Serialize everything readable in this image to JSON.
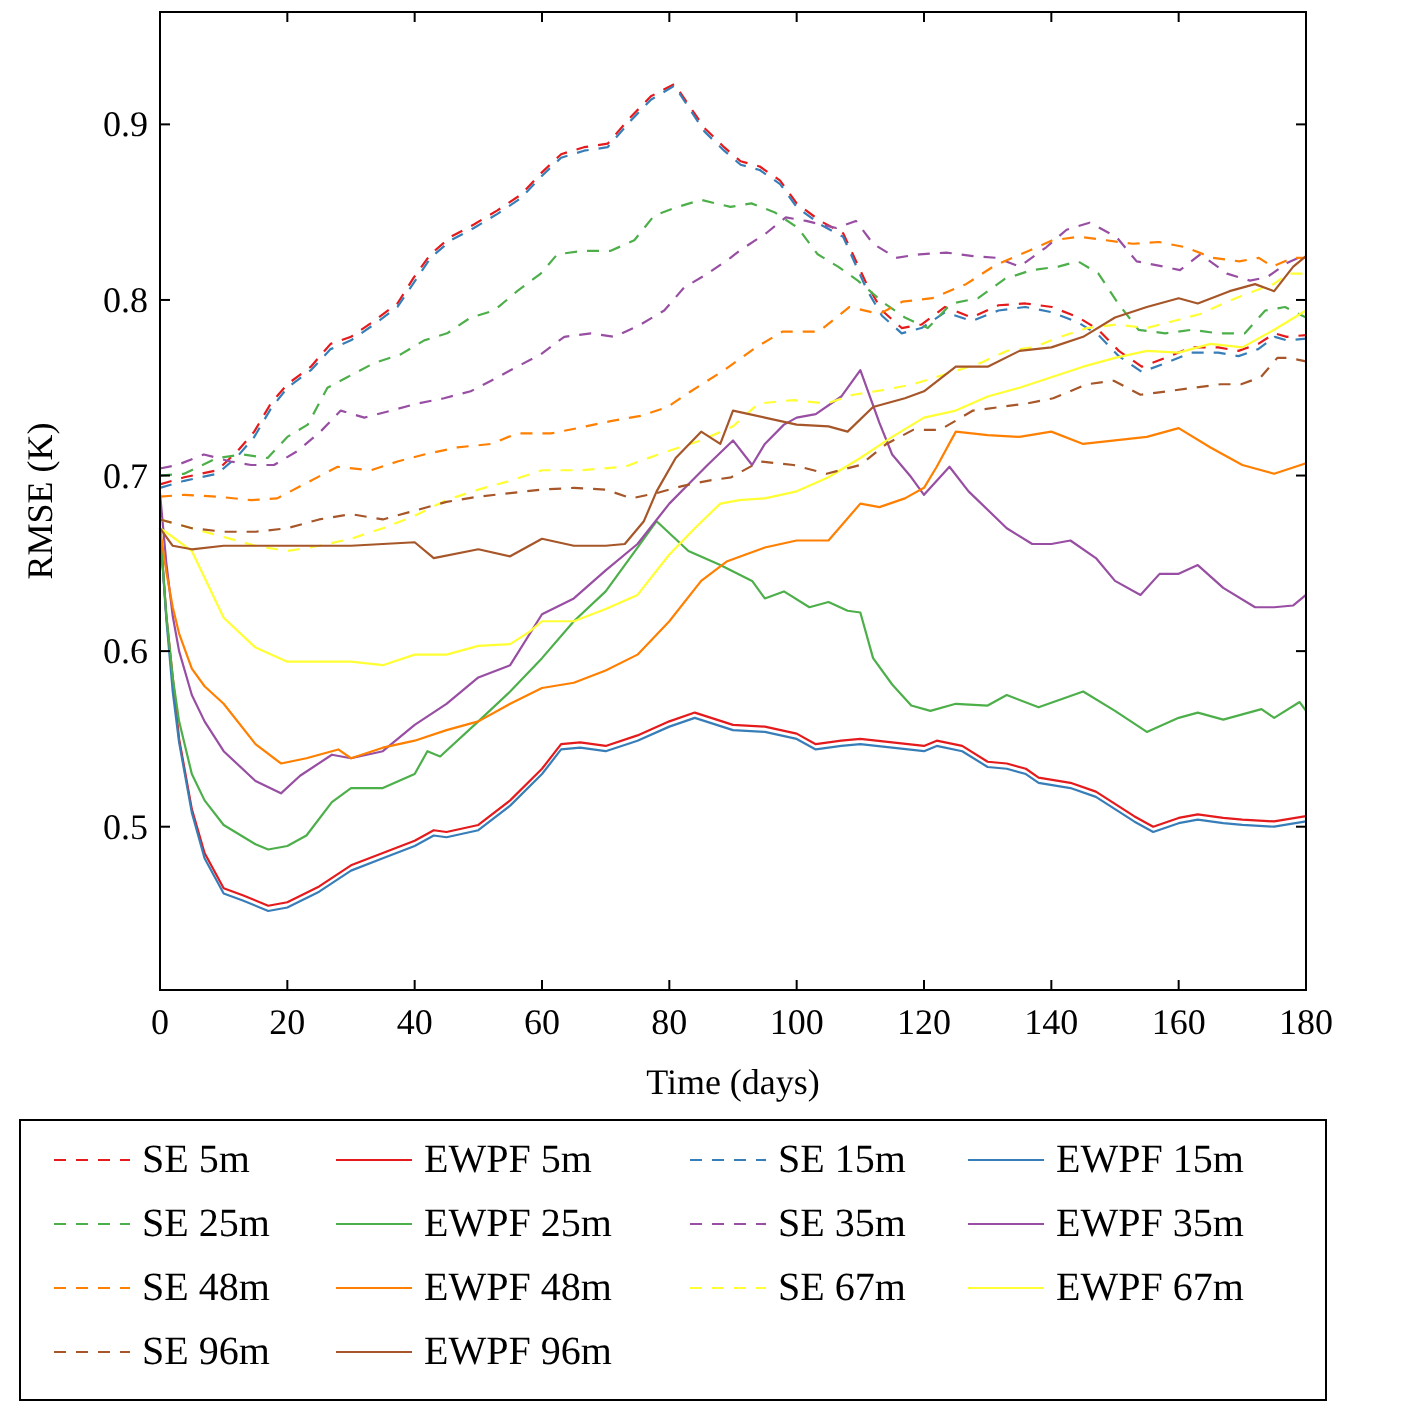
{
  "chart_data": {
    "type": "line",
    "xlabel": "Time (days)",
    "ylabel": "RMSE (K)",
    "xlim": [
      0,
      180
    ],
    "ylim": [
      0.407,
      0.964
    ],
    "xticks": [
      0,
      20,
      40,
      60,
      80,
      100,
      120,
      140,
      160,
      180
    ],
    "yticks": [
      0.5,
      0.6,
      0.7,
      0.8,
      0.9
    ],
    "legend": "bottom",
    "series": [
      {
        "name": "SE 5m",
        "color": "#e41a1c",
        "line_style": "dashed",
        "x": [
          0,
          3.8,
          9,
          12.2,
          14.8,
          17.4,
          20,
          23.7,
          26.8,
          30,
          33.6,
          37.3,
          39.9,
          42.5,
          45.7,
          49.3,
          53,
          56.7,
          59.8,
          63,
          66.6,
          70.3,
          73.9,
          77.1,
          80.8,
          85.5,
          88.6,
          91.2,
          94.2,
          97.4,
          100,
          103.7,
          107.3,
          111,
          113.4,
          116.5,
          119.6,
          123.3,
          127.5,
          131.7,
          135.9,
          140.1,
          144.3,
          147.4,
          150.6,
          154.2,
          157.9,
          162,
          166.2,
          169.4,
          172.5,
          175.1,
          177,
          180
        ],
        "values": [
          0.695,
          0.699,
          0.703,
          0.714,
          0.725,
          0.741,
          0.752,
          0.762,
          0.775,
          0.779,
          0.788,
          0.798,
          0.813,
          0.826,
          0.836,
          0.843,
          0.851,
          0.86,
          0.872,
          0.883,
          0.887,
          0.889,
          0.904,
          0.916,
          0.923,
          0.898,
          0.887,
          0.879,
          0.876,
          0.868,
          0.855,
          0.845,
          0.838,
          0.809,
          0.794,
          0.784,
          0.786,
          0.796,
          0.79,
          0.797,
          0.798,
          0.796,
          0.79,
          0.783,
          0.771,
          0.762,
          0.767,
          0.773,
          0.773,
          0.771,
          0.775,
          0.781,
          0.779,
          0.78
        ]
      },
      {
        "name": "EWPF 5m",
        "color": "#e41a1c",
        "line_style": "solid",
        "x": [
          0,
          1,
          3,
          5,
          7,
          10,
          13,
          17,
          20,
          25,
          30,
          35,
          40,
          43,
          45,
          50,
          55,
          60,
          63,
          66,
          70,
          75,
          80,
          84,
          90,
          95,
          100,
          103,
          107,
          110,
          115,
          120,
          122,
          126,
          130,
          133,
          136,
          138,
          143,
          147,
          150,
          153,
          156,
          160,
          163,
          167,
          170,
          175,
          180
        ],
        "values": [
          0.67,
          0.62,
          0.55,
          0.51,
          0.485,
          0.465,
          0.461,
          0.455,
          0.457,
          0.466,
          0.478,
          0.485,
          0.492,
          0.498,
          0.497,
          0.501,
          0.515,
          0.533,
          0.547,
          0.548,
          0.546,
          0.552,
          0.56,
          0.565,
          0.558,
          0.557,
          0.553,
          0.547,
          0.549,
          0.55,
          0.548,
          0.546,
          0.549,
          0.546,
          0.537,
          0.536,
          0.533,
          0.528,
          0.525,
          0.52,
          0.513,
          0.506,
          0.5,
          0.505,
          0.507,
          0.505,
          0.504,
          0.503,
          0.506
        ]
      },
      {
        "name": "SE 15m",
        "color": "#377eb8",
        "line_style": "dashed",
        "x": [
          0,
          3.8,
          9,
          12.2,
          14.8,
          17.4,
          20,
          23.7,
          26.8,
          30,
          33.6,
          37.3,
          39.9,
          42.5,
          45.7,
          49.3,
          53,
          56.7,
          59.8,
          63,
          66.6,
          70.3,
          73.9,
          77.1,
          80.8,
          85.5,
          88.6,
          91.2,
          94.2,
          97.4,
          100,
          103.7,
          107.3,
          111,
          113.4,
          116.5,
          119.6,
          123.3,
          127.5,
          131.7,
          135.9,
          140.1,
          144.3,
          147.4,
          150.6,
          154.2,
          157.9,
          162,
          166.2,
          169.4,
          172.5,
          175.1,
          177,
          180
        ],
        "values": [
          0.693,
          0.697,
          0.701,
          0.711,
          0.722,
          0.738,
          0.75,
          0.76,
          0.772,
          0.777,
          0.786,
          0.796,
          0.81,
          0.824,
          0.834,
          0.841,
          0.849,
          0.858,
          0.87,
          0.881,
          0.885,
          0.887,
          0.902,
          0.914,
          0.922,
          0.896,
          0.885,
          0.877,
          0.874,
          0.866,
          0.853,
          0.843,
          0.836,
          0.806,
          0.791,
          0.781,
          0.784,
          0.793,
          0.788,
          0.794,
          0.796,
          0.793,
          0.787,
          0.78,
          0.768,
          0.759,
          0.764,
          0.77,
          0.77,
          0.768,
          0.772,
          0.779,
          0.777,
          0.778
        ]
      },
      {
        "name": "EWPF 15m",
        "color": "#377eb8",
        "line_style": "solid",
        "x": [
          0,
          1,
          2,
          3,
          5,
          7,
          10,
          13,
          17,
          20,
          25,
          30,
          35,
          40,
          43,
          45,
          50,
          55,
          60,
          63,
          66,
          70,
          75,
          80,
          84,
          90,
          95,
          100,
          103,
          107,
          110,
          115,
          120,
          122,
          126,
          130,
          133,
          136,
          138,
          143,
          147,
          150,
          153,
          156,
          160,
          163,
          167,
          170,
          175,
          180
        ],
        "values": [
          0.67,
          0.618,
          0.577,
          0.548,
          0.508,
          0.482,
          0.462,
          0.458,
          0.452,
          0.454,
          0.463,
          0.475,
          0.482,
          0.489,
          0.495,
          0.494,
          0.498,
          0.512,
          0.53,
          0.544,
          0.545,
          0.543,
          0.549,
          0.557,
          0.562,
          0.555,
          0.554,
          0.55,
          0.544,
          0.546,
          0.547,
          0.545,
          0.543,
          0.546,
          0.543,
          0.534,
          0.533,
          0.53,
          0.525,
          0.522,
          0.517,
          0.51,
          0.503,
          0.497,
          0.502,
          0.504,
          0.502,
          0.501,
          0.5,
          0.503
        ]
      },
      {
        "name": "SE 25m",
        "color": "#4daf4a",
        "line_style": "dashed",
        "x": [
          0,
          3.8,
          9,
          13,
          16.9,
          20,
          23.2,
          26.3,
          29.4,
          33.6,
          37.8,
          41.5,
          45.1,
          48.8,
          52.5,
          56.1,
          59.8,
          62.4,
          66.6,
          70.8,
          74.5,
          77.6,
          81.3,
          85,
          89.6,
          92.9,
          96.5,
          100.2,
          103.3,
          106.5,
          109.6,
          113.8,
          117,
          120.6,
          124.3,
          128.5,
          132.7,
          136.9,
          141.1,
          144.2,
          147.4,
          150.5,
          153.7,
          157.9,
          162,
          166.2,
          170.4,
          173.6,
          176.7,
          180
        ],
        "values": [
          0.7,
          0.701,
          0.71,
          0.712,
          0.71,
          0.722,
          0.729,
          0.75,
          0.756,
          0.764,
          0.769,
          0.777,
          0.781,
          0.79,
          0.794,
          0.805,
          0.815,
          0.826,
          0.828,
          0.828,
          0.834,
          0.848,
          0.853,
          0.857,
          0.853,
          0.855,
          0.85,
          0.841,
          0.826,
          0.819,
          0.811,
          0.798,
          0.79,
          0.784,
          0.798,
          0.801,
          0.812,
          0.817,
          0.819,
          0.822,
          0.815,
          0.798,
          0.783,
          0.781,
          0.783,
          0.781,
          0.781,
          0.794,
          0.796,
          0.79
        ]
      },
      {
        "name": "EWPF 25m",
        "color": "#4daf4a",
        "line_style": "solid",
        "x": [
          0,
          1,
          2,
          3,
          5,
          7,
          10,
          15,
          17,
          20,
          23,
          27,
          30,
          35,
          40,
          42,
          44,
          50,
          55,
          60,
          65,
          70,
          75,
          78,
          83,
          88,
          93,
          95,
          98,
          102,
          105,
          108,
          110,
          112,
          115,
          118,
          121,
          125,
          130,
          133,
          138,
          145,
          150,
          155,
          160,
          163,
          167,
          173,
          175,
          179,
          180
        ],
        "values": [
          0.67,
          0.62,
          0.585,
          0.56,
          0.53,
          0.515,
          0.501,
          0.49,
          0.487,
          0.489,
          0.495,
          0.514,
          0.522,
          0.522,
          0.53,
          0.543,
          0.54,
          0.56,
          0.577,
          0.596,
          0.617,
          0.634,
          0.659,
          0.674,
          0.657,
          0.649,
          0.64,
          0.63,
          0.634,
          0.625,
          0.628,
          0.623,
          0.622,
          0.596,
          0.581,
          0.569,
          0.566,
          0.57,
          0.569,
          0.575,
          0.568,
          0.577,
          0.566,
          0.554,
          0.562,
          0.565,
          0.561,
          0.567,
          0.562,
          0.571,
          0.566
        ]
      },
      {
        "name": "SE 35m",
        "color": "#984ea3",
        "line_style": "dashed",
        "x": [
          0,
          2.7,
          6.9,
          11.1,
          14.3,
          17.9,
          21.6,
          25.2,
          28.4,
          32.1,
          36.3,
          40.4,
          44.6,
          48.8,
          52,
          56.1,
          59.8,
          63.5,
          67.7,
          71.4,
          75.5,
          79.2,
          82.3,
          86,
          89.6,
          91,
          95.2,
          98.3,
          101.5,
          106.2,
          109.3,
          112,
          115.6,
          119.3,
          123.5,
          127.7,
          131.4,
          135,
          139.2,
          142.4,
          146,
          150.2,
          153.4,
          157.6,
          160.2,
          163.4,
          167.6,
          171.2,
          173.9,
          177,
          180
        ],
        "values": [
          0.704,
          0.706,
          0.712,
          0.708,
          0.706,
          0.706,
          0.714,
          0.725,
          0.737,
          0.733,
          0.737,
          0.741,
          0.744,
          0.748,
          0.754,
          0.762,
          0.769,
          0.779,
          0.781,
          0.779,
          0.786,
          0.794,
          0.807,
          0.815,
          0.824,
          0.828,
          0.838,
          0.847,
          0.845,
          0.841,
          0.845,
          0.832,
          0.824,
          0.826,
          0.827,
          0.825,
          0.824,
          0.819,
          0.83,
          0.84,
          0.844,
          0.836,
          0.822,
          0.819,
          0.817,
          0.826,
          0.815,
          0.811,
          0.813,
          0.821,
          0.826
        ]
      },
      {
        "name": "EWPF 35m",
        "color": "#984ea3",
        "line_style": "solid",
        "x": [
          0,
          1,
          2,
          3,
          5,
          7,
          10,
          15,
          19,
          22,
          27,
          30,
          35,
          40,
          45,
          50,
          55,
          60,
          65,
          70,
          75,
          80,
          83,
          86,
          90,
          93,
          95,
          98,
          100,
          103,
          107,
          110,
          113,
          115,
          118,
          120,
          124,
          127,
          133,
          137,
          140,
          143,
          147,
          150,
          154,
          157,
          160,
          163,
          167,
          172,
          175,
          178,
          180
        ],
        "values": [
          0.69,
          0.65,
          0.62,
          0.6,
          0.575,
          0.56,
          0.543,
          0.526,
          0.519,
          0.529,
          0.541,
          0.539,
          0.543,
          0.558,
          0.57,
          0.585,
          0.592,
          0.621,
          0.63,
          0.646,
          0.661,
          0.684,
          0.695,
          0.706,
          0.72,
          0.706,
          0.718,
          0.729,
          0.733,
          0.735,
          0.745,
          0.76,
          0.73,
          0.712,
          0.699,
          0.689,
          0.705,
          0.691,
          0.67,
          0.661,
          0.661,
          0.663,
          0.653,
          0.64,
          0.632,
          0.644,
          0.644,
          0.649,
          0.636,
          0.625,
          0.625,
          0.626,
          0.632
        ]
      },
      {
        "name": "SE 48m",
        "color": "#ff7f00",
        "line_style": "dashed",
        "x": [
          0,
          3.8,
          9,
          14.3,
          18.4,
          22.6,
          27.9,
          33.1,
          37.3,
          41.5,
          46.7,
          52,
          56.1,
          61.4,
          65.6,
          70.8,
          75.5,
          79.7,
          83.4,
          88.6,
          93.6,
          97.8,
          103.5,
          108.3,
          113,
          116.6,
          121.3,
          126.6,
          131.3,
          136.5,
          140.2,
          144.4,
          148.6,
          152.8,
          156.9,
          161.1,
          165.3,
          169.5,
          172.6,
          174.7,
          177.9,
          180
        ],
        "values": [
          0.688,
          0.689,
          0.688,
          0.686,
          0.687,
          0.695,
          0.705,
          0.703,
          0.708,
          0.712,
          0.716,
          0.718,
          0.724,
          0.724,
          0.727,
          0.731,
          0.734,
          0.739,
          0.748,
          0.76,
          0.773,
          0.782,
          0.782,
          0.796,
          0.792,
          0.799,
          0.801,
          0.809,
          0.82,
          0.828,
          0.834,
          0.836,
          0.834,
          0.832,
          0.833,
          0.83,
          0.824,
          0.822,
          0.824,
          0.819,
          0.824,
          0.824
        ]
      },
      {
        "name": "EWPF 48m",
        "color": "#ff7f00",
        "line_style": "solid",
        "x": [
          0,
          1,
          2,
          3,
          5,
          7,
          10,
          15,
          19,
          23,
          28,
          30,
          35,
          40,
          45,
          50,
          55,
          60,
          65,
          70,
          75,
          80,
          85,
          89,
          92,
          95,
          100,
          105,
          110,
          113,
          117,
          120,
          122,
          125,
          130,
          135,
          140,
          145,
          150,
          155,
          160,
          165,
          170,
          175,
          180
        ],
        "values": [
          0.67,
          0.645,
          0.625,
          0.61,
          0.59,
          0.58,
          0.57,
          0.547,
          0.536,
          0.539,
          0.544,
          0.539,
          0.545,
          0.549,
          0.555,
          0.56,
          0.57,
          0.579,
          0.582,
          0.589,
          0.598,
          0.617,
          0.64,
          0.651,
          0.655,
          0.659,
          0.663,
          0.663,
          0.684,
          0.682,
          0.687,
          0.693,
          0.705,
          0.725,
          0.723,
          0.722,
          0.725,
          0.718,
          0.72,
          0.722,
          0.727,
          0.716,
          0.706,
          0.701,
          0.707
        ]
      },
      {
        "name": "SE 67m",
        "color": "#ffff33",
        "line_style": "dashed",
        "x": [
          0,
          5,
          10,
          15,
          20,
          25,
          30,
          35,
          40,
          45,
          50,
          55,
          60,
          66,
          73,
          79,
          85,
          90,
          94,
          99.5,
          104.7,
          108.9,
          114.1,
          118.3,
          123.6,
          128.8,
          133,
          137.2,
          141.4,
          145.6,
          150.3,
          155,
          159.2,
          163.4,
          167.6,
          171.8,
          174.9,
          177.2,
          180
        ],
        "values": [
          0.675,
          0.67,
          0.665,
          0.66,
          0.657,
          0.66,
          0.664,
          0.67,
          0.677,
          0.686,
          0.692,
          0.697,
          0.703,
          0.703,
          0.705,
          0.713,
          0.72,
          0.728,
          0.741,
          0.743,
          0.741,
          0.746,
          0.749,
          0.752,
          0.758,
          0.764,
          0.771,
          0.773,
          0.779,
          0.784,
          0.786,
          0.784,
          0.788,
          0.792,
          0.799,
          0.805,
          0.809,
          0.815,
          0.815
        ]
      },
      {
        "name": "EWPF 67m",
        "color": "#ffff33",
        "line_style": "solid",
        "x": [
          0,
          2,
          5,
          10,
          15,
          20,
          30,
          35,
          40,
          45,
          50,
          55,
          58,
          60,
          65,
          70,
          75,
          80,
          84,
          88,
          91,
          95,
          100,
          105,
          110,
          115,
          120,
          125,
          130,
          135,
          140,
          145,
          150,
          155,
          160,
          165,
          170,
          175,
          180
        ],
        "values": [
          0.67,
          0.665,
          0.657,
          0.619,
          0.602,
          0.594,
          0.594,
          0.592,
          0.598,
          0.598,
          0.603,
          0.604,
          0.611,
          0.617,
          0.617,
          0.624,
          0.632,
          0.655,
          0.67,
          0.684,
          0.686,
          0.687,
          0.691,
          0.699,
          0.71,
          0.722,
          0.733,
          0.737,
          0.745,
          0.75,
          0.756,
          0.762,
          0.767,
          0.771,
          0.77,
          0.775,
          0.773,
          0.783,
          0.794
        ]
      },
      {
        "name": "SE 96m",
        "color": "#a65628",
        "line_style": "dashed",
        "x": [
          0,
          5,
          10,
          15,
          20,
          25,
          30,
          35,
          40,
          45,
          50,
          55,
          60,
          65,
          70,
          74,
          78,
          82,
          86,
          89.7,
          94.2,
          99.5,
          104.7,
          110,
          114.1,
          118.3,
          122.5,
          127.7,
          131.9,
          136.1,
          140.3,
          145.6,
          149.8,
          154,
          158.2,
          162.4,
          166.6,
          169.8,
          172.9,
          175.5,
          177.3,
          180
        ],
        "values": [
          0.675,
          0.67,
          0.668,
          0.668,
          0.67,
          0.675,
          0.678,
          0.675,
          0.68,
          0.685,
          0.688,
          0.69,
          0.692,
          0.693,
          0.692,
          0.687,
          0.69,
          0.694,
          0.697,
          0.699,
          0.708,
          0.706,
          0.701,
          0.706,
          0.718,
          0.726,
          0.726,
          0.737,
          0.739,
          0.741,
          0.744,
          0.752,
          0.754,
          0.746,
          0.748,
          0.75,
          0.752,
          0.752,
          0.756,
          0.767,
          0.767,
          0.765
        ]
      },
      {
        "name": "EWPF 96m",
        "color": "#a65628",
        "line_style": "solid",
        "x": [
          0,
          2,
          5,
          10,
          20,
          30,
          40,
          43,
          50,
          55,
          60,
          65,
          70,
          73,
          76,
          78,
          81,
          85,
          88,
          90,
          95,
          100,
          105,
          108,
          112,
          117,
          120,
          125,
          130,
          135,
          140,
          145,
          150,
          155,
          160,
          163,
          168,
          172,
          175,
          178,
          180
        ],
        "values": [
          0.67,
          0.66,
          0.658,
          0.66,
          0.66,
          0.66,
          0.662,
          0.653,
          0.658,
          0.654,
          0.664,
          0.66,
          0.66,
          0.661,
          0.674,
          0.691,
          0.71,
          0.725,
          0.718,
          0.737,
          0.733,
          0.729,
          0.728,
          0.725,
          0.739,
          0.744,
          0.748,
          0.762,
          0.762,
          0.771,
          0.773,
          0.779,
          0.79,
          0.796,
          0.801,
          0.798,
          0.805,
          0.809,
          0.805,
          0.819,
          0.825
        ]
      }
    ]
  }
}
